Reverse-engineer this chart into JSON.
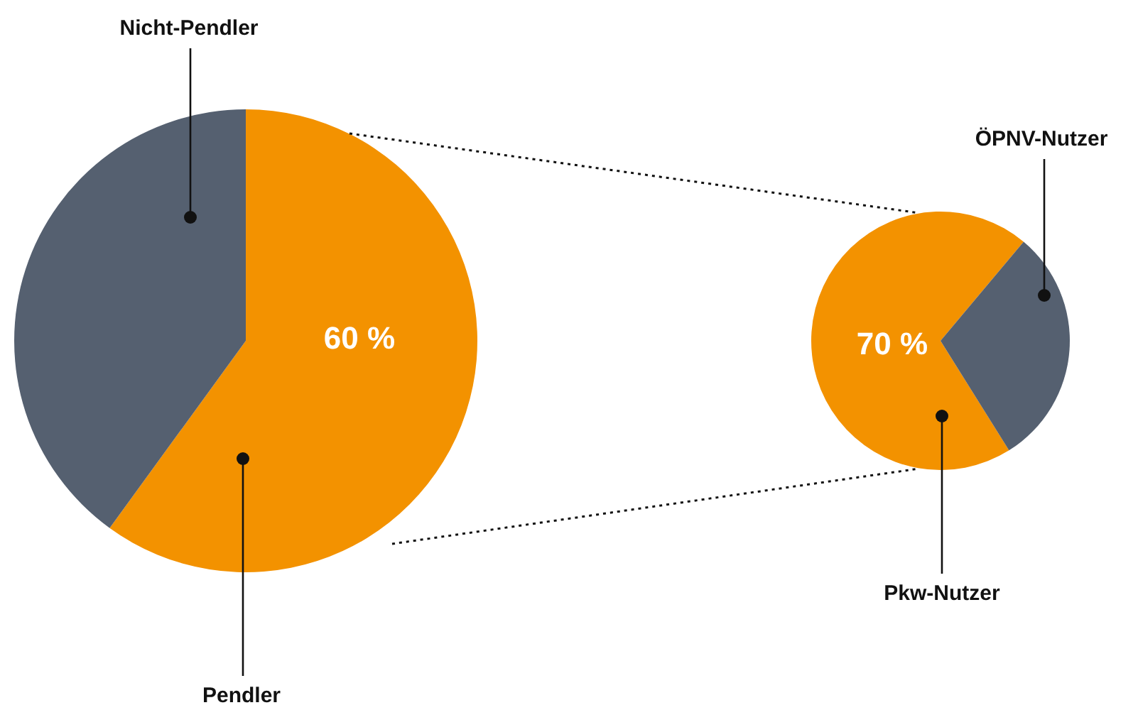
{
  "chart_data": [
    {
      "type": "pie",
      "categories": [
        "Pendler",
        "Nicht-Pendler"
      ],
      "values": [
        60,
        40
      ],
      "colors": [
        "#f39200",
        "#556070"
      ],
      "value_labels": [
        "60 %",
        null
      ]
    },
    {
      "type": "pie",
      "categories": [
        "Pkw-Nutzer",
        "ÖPNV-Nutzer"
      ],
      "values": [
        70,
        30
      ],
      "colors": [
        "#f39200",
        "#556070"
      ],
      "value_labels": [
        "70 %",
        null
      ]
    }
  ]
}
